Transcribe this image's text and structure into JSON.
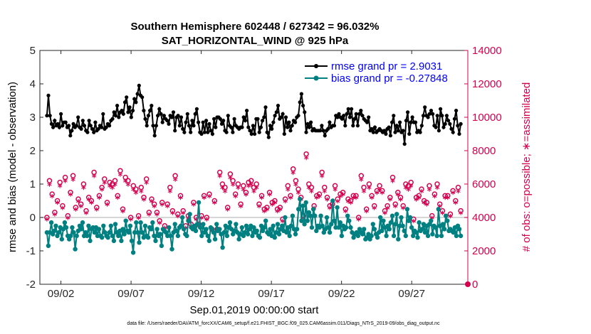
{
  "chart_data": {
    "type": "line",
    "title": "Southern Hemisphere 602448 / 627342 = 96.032%",
    "subtitle": "SAT_HORIZONTAL_WIND @ 925 hPa",
    "xlabel": "Sep.01,2019 00:00:00 start",
    "ylabel_left": "rmse and bias (model - observation)",
    "ylabel_right": "# of obs: o=possible; ∗=assimilated",
    "footnote": "data file: /Users/raeder/DAI/ATM_forcXX/CAM6_setup/f.e21.FHIST_BGC.f09_025.CAM6assim.011/Diags_NTrS_2019-09/obs_diag_output.nc",
    "x_range": [
      0.5,
      31.0
    ],
    "x_ticks": [
      2,
      7,
      12,
      17,
      22,
      27
    ],
    "x_ticklabels": [
      "09/02",
      "09/07",
      "09/12",
      "09/17",
      "09/22",
      "09/27"
    ],
    "ylim_left": [
      -2,
      5
    ],
    "yticks_left": [
      "-2",
      "-1",
      "0",
      "1",
      "2",
      "3",
      "4",
      "5"
    ],
    "ylim_right": [
      0,
      14000
    ],
    "yticks_right": [
      "0",
      "2000",
      "4000",
      "6000",
      "8000",
      "10000",
      "12000",
      "14000"
    ],
    "zero_line": 0,
    "legend": [
      {
        "label": "rmse grand pr = 2.9031",
        "color": "#000000"
      },
      {
        "label": "bias grand pr = -0.27848",
        "color": "#008080"
      }
    ],
    "series": [
      {
        "name": "rmse",
        "axis": "left",
        "color": "#000000",
        "values": [
          3.05,
          3.65,
          3.05,
          2.8,
          2.7,
          2.9,
          2.75,
          2.8,
          2.7,
          3.1,
          2.75,
          2.85,
          2.85,
          2.7,
          2.75,
          2.45,
          2.6,
          2.8,
          2.7,
          2.75,
          3.0,
          2.7,
          2.65,
          2.9,
          2.75,
          2.6,
          2.55,
          2.9,
          2.75,
          2.65,
          2.55,
          2.85,
          2.6,
          2.65,
          2.75,
          2.7,
          3.1,
          2.65,
          2.7,
          2.8,
          2.75,
          2.9,
          2.95,
          3.15,
          3.05,
          3.35,
          3.0,
          3.15,
          3.2,
          3.1,
          3.45,
          3.6,
          3.15,
          3.3,
          3.0,
          3.2,
          3.55,
          3.45,
          3.7,
          3.95,
          3.65,
          3.6,
          3.2,
          2.95,
          2.75,
          3.05,
          3.2,
          3.35,
          2.75,
          2.45,
          2.75,
          3.05,
          3.25,
          3.1,
          2.85,
          3.05,
          2.95,
          2.9,
          2.8,
          3.05,
          3.0,
          3.15,
          2.6,
          3.0,
          3.05,
          2.75,
          3.0,
          2.65,
          2.55,
          2.85,
          3.1,
          2.75,
          2.55,
          2.9,
          2.75,
          3.1,
          3.25,
          2.85,
          2.55,
          2.5,
          2.85,
          2.55,
          2.9,
          2.55,
          2.8,
          2.6,
          2.5,
          2.95,
          2.7,
          3.0,
          3.0,
          2.95,
          2.8,
          2.9,
          2.6,
          2.55,
          3.05,
          2.75,
          2.7,
          2.55,
          2.95,
          2.75,
          2.7,
          2.65,
          2.7,
          2.7,
          3.0,
          2.9,
          3.2,
          2.7,
          2.6,
          2.5,
          2.75,
          2.5,
          2.95,
          2.95,
          2.55,
          2.7,
          2.9,
          3.0,
          3.3,
          2.55,
          2.4,
          2.75,
          2.65,
          2.85,
          3.05,
          3.15,
          3.35,
          2.95,
          3.0,
          3.1,
          2.5,
          3.0,
          2.7,
          2.85,
          2.6,
          2.75,
          2.9,
          2.85,
          3.0,
          3.05,
          3.45,
          3.7,
          3.35,
          3.15,
          2.55,
          2.8,
          2.7,
          2.85,
          2.6,
          2.65,
          2.6,
          2.6,
          2.6,
          2.6,
          2.75,
          2.6,
          2.45,
          2.6,
          2.65,
          2.85,
          2.7,
          2.75,
          2.75,
          3.05,
          3.0,
          3.1,
          3.0,
          2.95,
          3.05,
          2.75,
          3.1,
          3.25,
          3.0,
          3.25,
          2.75,
          2.95,
          3.1,
          2.75,
          3.1,
          3.2,
          3.05,
          2.95,
          2.9,
          2.85,
          3.0,
          2.6,
          2.65,
          2.55,
          2.7,
          2.55,
          2.6,
          2.65,
          2.6,
          2.55,
          2.6,
          2.5,
          2.65,
          2.7,
          2.45,
          2.85,
          3.05,
          2.55,
          2.75,
          2.6,
          2.85,
          2.55,
          2.6,
          2.2,
          2.9,
          3.15,
          2.5,
          2.85,
          3.0,
          2.85,
          2.85,
          2.55,
          2.6,
          2.55,
          2.75,
          3.05,
          3.3,
          3.05,
          3.0,
          3.1,
          3.2,
          3.1,
          2.75,
          2.7,
          3.05,
          2.6,
          3.25,
          3.05,
          2.7,
          2.8,
          3.05,
          2.9,
          2.8,
          2.65,
          2.55,
          2.95,
          3.2,
          2.75,
          2.5,
          2.8
        ],
        "values_note": "x runs uniformly from 1.0 (09/01) to 30.5 in steps of ~0.25 (6-hourly)"
      },
      {
        "name": "bias",
        "axis": "left",
        "color": "#008080",
        "values": [
          -0.45,
          -0.85,
          -0.45,
          -0.15,
          -0.5,
          -0.4,
          -0.25,
          -0.55,
          -0.45,
          -0.3,
          -0.65,
          -0.35,
          -0.15,
          -0.3,
          -0.55,
          -0.65,
          -0.55,
          -0.3,
          -0.45,
          -0.95,
          -0.55,
          -0.4,
          -0.25,
          -0.35,
          -0.15,
          -0.55,
          -0.45,
          -0.55,
          -0.25,
          -0.7,
          -0.35,
          -0.3,
          -0.45,
          -0.3,
          -0.55,
          -0.35,
          -0.55,
          -0.6,
          -0.25,
          -0.45,
          -0.55,
          -0.6,
          -0.45,
          -0.25,
          -0.55,
          -0.7,
          -0.2,
          -0.45,
          -0.55,
          -0.4,
          -0.7,
          -0.35,
          -0.5,
          -0.1,
          -0.4,
          -0.45,
          -0.25,
          -0.7,
          -1.05,
          -0.45,
          -0.15,
          -0.45,
          -0.75,
          -0.15,
          -0.45,
          -0.6,
          -0.25,
          -0.55,
          -0.6,
          -0.3,
          -0.35,
          -0.15,
          -0.55,
          -0.7,
          -0.35,
          -0.55,
          -0.5,
          -0.85,
          -0.35,
          -0.4,
          -0.45,
          -0.55,
          -0.3,
          -0.55,
          -0.95,
          -0.45,
          -0.2,
          -0.4,
          -0.55,
          -0.3,
          -0.25,
          0.0,
          -0.35,
          -0.5,
          -0.55,
          -0.1,
          0.1,
          -0.3,
          -0.35,
          -0.25,
          -0.4,
          -0.2,
          0.45,
          -0.3,
          -0.55,
          -0.2,
          -0.45,
          -0.35,
          -0.55,
          -0.7,
          -0.3,
          -0.35,
          -0.45,
          -0.65,
          -0.2,
          -0.4,
          -0.35,
          -0.5,
          -0.9,
          -0.45,
          -0.25,
          -0.55,
          -0.3,
          -0.15,
          -0.35,
          -0.5,
          -0.4,
          -0.2,
          -0.45,
          -0.65,
          -0.5,
          -0.3,
          -0.55,
          -0.45,
          -0.25,
          -0.5,
          -0.35,
          -0.25,
          -0.55,
          -0.3,
          -0.45,
          -0.4,
          -0.55,
          -0.6,
          -0.25,
          -0.4,
          -0.3,
          -0.1,
          -0.45,
          -0.5,
          -0.35,
          -0.55,
          -0.25,
          -0.6,
          -0.45,
          -0.2,
          -0.5,
          -0.35,
          -0.25,
          -0.4,
          0.0,
          -0.45,
          -0.3,
          -0.55,
          -0.25,
          0.05,
          -0.35,
          -0.5,
          -0.35,
          0.25,
          0.55,
          -0.1,
          0.35,
          -0.2,
          0.45,
          -0.1,
          0.15,
          0.05,
          -0.3,
          0.25,
          0.05,
          -0.4,
          -0.25,
          -0.3,
          0.05,
          -0.25,
          -0.45,
          -0.35,
          0.0,
          -0.3,
          -0.45,
          -0.2,
          0.5,
          -0.1,
          -0.3,
          0.3,
          -0.3,
          -0.15,
          -0.55,
          -0.25,
          -0.35,
          -0.3,
          0.05,
          -0.1,
          -0.3,
          -0.45,
          -0.6,
          -0.5,
          -0.45,
          -0.55,
          -0.35,
          -0.45,
          -0.5,
          -0.35,
          -0.65,
          -0.6,
          -0.5,
          -0.65,
          -0.55,
          -0.2,
          -0.35,
          -0.5,
          -0.6,
          -0.45,
          0.0,
          -0.4,
          -0.1,
          -0.3,
          -0.55,
          -0.25,
          -0.35,
          -0.15,
          0.05,
          -0.55,
          -0.2,
          0.1,
          -0.65,
          -0.25,
          0.0,
          -0.25,
          -0.4,
          -0.55,
          0.25,
          -0.1,
          0.0,
          -0.3,
          -0.55,
          -0.4,
          -0.45,
          -0.6,
          -0.15,
          -0.4,
          -0.35,
          -0.2,
          -0.45,
          -0.25,
          -0.55,
          -0.2,
          -0.1,
          -0.5,
          -0.25,
          -0.3,
          -0.55,
          0.25,
          -0.25,
          -0.55,
          -0.2,
          -0.35,
          0.05,
          -0.1,
          -0.4,
          -0.35,
          -0.4,
          -0.45,
          -0.3,
          -0.55,
          -0.25,
          -0.35,
          -0.55
        ]
      },
      {
        "name": "obs possible",
        "axis": "right",
        "color": "#d4004e",
        "marker": "circle",
        "values": [
          4000,
          6200,
          5400,
          4300,
          5000,
          6100,
          4700,
          6400,
          4100,
          5500,
          6500,
          4600,
          5100,
          4800,
          6000,
          4400,
          5200,
          5000,
          6700,
          4600,
          5300,
          5800,
          6300,
          4900,
          6100,
          6000,
          6200,
          5300,
          6800,
          4500,
          6400,
          6200,
          4000,
          5900,
          5700,
          4100,
          5800,
          5200,
          6300,
          4300,
          5100,
          4800,
          4300,
          3800,
          4900,
          3500,
          4800,
          5800,
          4400,
          6500,
          4200,
          5300,
          4400,
          3500,
          4100,
          3600,
          4900,
          4000,
          3600,
          4100,
          5300,
          4000,
          5400,
          3300,
          5000,
          3300,
          6700,
          6000,
          5800,
          4600,
          6600,
          6200,
          5400,
          6000,
          4800,
          5900,
          5500,
          6100,
          6200,
          5800,
          6000,
          4800,
          5300,
          4500,
          4600,
          5500,
          4900,
          5000,
          4500,
          4600,
          3900,
          5100,
          5900,
          5300,
          6900,
          6200,
          5700,
          5200,
          4100,
          7800,
          6000,
          5800,
          4700,
          5300,
          5400,
          6700,
          5800,
          5200,
          4700,
          4800,
          5900,
          5100,
          5400,
          5500,
          4500,
          5100,
          5000,
          5300,
          5300,
          4000,
          6500,
          5800,
          4500,
          6000,
          5300,
          4700,
          5600,
          5900,
          5600,
          4400,
          4700,
          5200,
          6400,
          4800,
          5500,
          5200,
          4700,
          6000,
          5900,
          6100,
          3900,
          5200,
          5300,
          5700,
          5000,
          4900,
          5900,
          4100,
          5400,
          6000,
          4800,
          4400,
          5300,
          5300,
          4200,
          5600,
          5000,
          5800,
          4400
        ]
      },
      {
        "name": "obs assimilated",
        "axis": "right",
        "color": "#d4004e",
        "marker": "asterisk",
        "values": [
          3800,
          5900,
          5200,
          4100,
          4800,
          5800,
          4500,
          6100,
          3900,
          5300,
          6200,
          4400,
          4900,
          4600,
          5700,
          4200,
          5000,
          4800,
          6400,
          4400,
          5100,
          5600,
          6000,
          4700,
          5800,
          5700,
          5900,
          5100,
          6500,
          4300,
          6100,
          5900,
          3800,
          5600,
          5400,
          3900,
          5500,
          5000,
          6000,
          4100,
          4900,
          4600,
          4100,
          3600,
          4700,
          3300,
          4600,
          5500,
          4200,
          6200,
          4000,
          5100,
          4200,
          3300,
          3900,
          3400,
          4700,
          3800,
          3400,
          3900,
          5100,
          3800,
          5200,
          3100,
          4800,
          3100,
          6400,
          5700,
          5500,
          4400,
          6300,
          5900,
          5200,
          5700,
          4600,
          5600,
          5300,
          5800,
          5900,
          5500,
          5700,
          4600,
          5100,
          4300,
          4400,
          5300,
          4700,
          4800,
          4300,
          4400,
          3700,
          4900,
          5600,
          5100,
          6600,
          5900,
          5400,
          5000,
          3900,
          7500,
          5700,
          5500,
          4500,
          5100,
          5200,
          6400,
          5500,
          5000,
          4500,
          4600,
          5600,
          4900,
          5200,
          5300,
          4300,
          4900,
          4800,
          5100,
          5100,
          3800,
          6200,
          5500,
          4300,
          5700,
          5100,
          4500,
          5400,
          5600,
          5400,
          4200,
          4500,
          5000,
          6100,
          4600,
          5300,
          5000,
          4500,
          5700,
          5600,
          5800,
          3700,
          5000,
          5100,
          5500,
          4800,
          4700,
          5600,
          3900,
          5200,
          5700,
          4600,
          4200,
          5100,
          5100,
          4000,
          5400,
          4800,
          5500,
          4200
        ]
      }
    ]
  }
}
